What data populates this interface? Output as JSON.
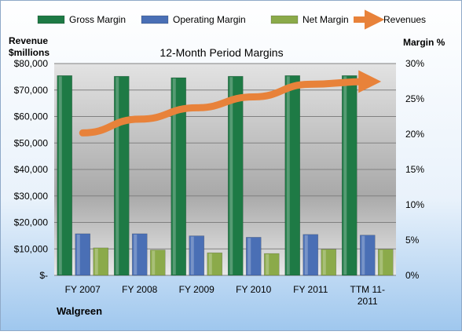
{
  "chart_data": {
    "type": "bar",
    "title": "12-Month Period Margins",
    "company": "Walgreen",
    "left_axis_label": [
      "Revenue",
      "$millions"
    ],
    "right_axis_label": "Margin %",
    "categories": [
      [
        "FY 2007"
      ],
      [
        "FY 2008"
      ],
      [
        "FY 2009"
      ],
      [
        "FY 2010"
      ],
      [
        "FY 2011"
      ],
      [
        "TTM 11-",
        "2011"
      ]
    ],
    "left_axis": {
      "min": 0,
      "max": 80000,
      "step": 10000,
      "ticks": [
        "$-",
        "$10,000",
        "$20,000",
        "$30,000",
        "$40,000",
        "$50,000",
        "$60,000",
        "$70,000",
        "$80,000"
      ]
    },
    "right_axis": {
      "min": 0,
      "max": 30,
      "step": 5,
      "ticks": [
        "0%",
        "5%",
        "10%",
        "15%",
        "20%",
        "25%",
        "30%"
      ]
    },
    "series": [
      {
        "name": "Gross Margin",
        "axis": "right",
        "kind": "bar",
        "color": "#1E7A45",
        "values": [
          28.3,
          28.2,
          28.0,
          28.2,
          28.3,
          28.3
        ]
      },
      {
        "name": "Operating Margin",
        "axis": "right",
        "kind": "bar",
        "color": "#4A6FB5",
        "values": [
          5.9,
          5.9,
          5.6,
          5.4,
          5.8,
          5.7
        ]
      },
      {
        "name": "Net Margin",
        "axis": "right",
        "kind": "bar",
        "color": "#8BAA4A",
        "values": [
          3.9,
          3.6,
          3.2,
          3.1,
          3.7,
          3.7
        ]
      },
      {
        "name": "Revenues",
        "axis": "left",
        "kind": "line",
        "color": "#E8823A",
        "values": [
          53800,
          59000,
          63300,
          67400,
          72200,
          73200
        ]
      }
    ],
    "legend_position": "top",
    "grid": true
  }
}
